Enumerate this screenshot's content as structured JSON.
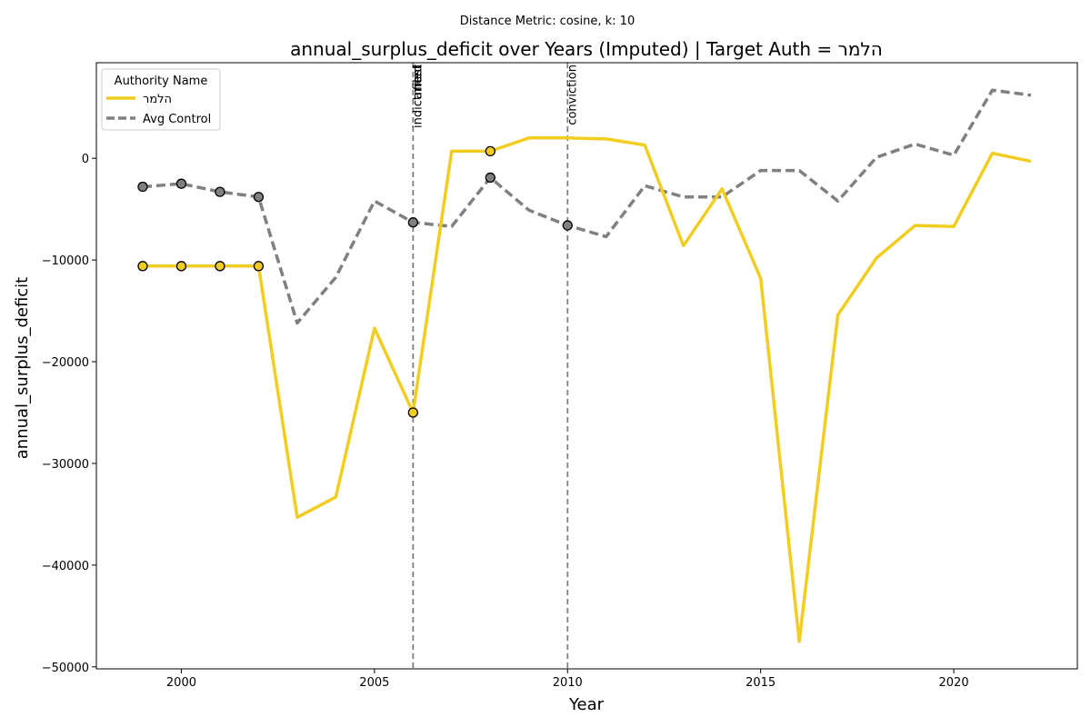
{
  "chart_data": {
    "type": "line",
    "suptitle": "Distance Metric: cosine, k: 10",
    "title": "annual_surplus_deficit over Years (Imputed) | Target Auth = הלמר",
    "xlabel": "Year",
    "ylabel": "annual_surplus_deficit",
    "xlim": [
      1997.8,
      2023.2
    ],
    "ylim": [
      -50200,
      9400
    ],
    "x_ticks": [
      2000,
      2005,
      2010,
      2015,
      2020
    ],
    "y_ticks": [
      0,
      -10000,
      -20000,
      -30000,
      -40000,
      -50000
    ],
    "x_tick_labels": [
      "2000",
      "2005",
      "2010",
      "2015",
      "2020"
    ],
    "y_tick_labels": [
      "0",
      "−10000",
      "−20000",
      "−30000",
      "−40000",
      "−50000"
    ],
    "x": [
      1999,
      2000,
      2001,
      2002,
      2003,
      2004,
      2005,
      2006,
      2007,
      2008,
      2009,
      2010,
      2011,
      2012,
      2013,
      2014,
      2015,
      2016,
      2017,
      2018,
      2019,
      2020,
      2021,
      2022
    ],
    "series": [
      {
        "name": "הלמר",
        "color": "#f2cd21",
        "style": "solid",
        "values": [
          -10600,
          -10600,
          -10600,
          -10600,
          -35300,
          -33300,
          -16700,
          -25000,
          700,
          700,
          2000,
          2000,
          1900,
          1300,
          -8600,
          -3000,
          -11800,
          -47500,
          -15400,
          -9800,
          -6600,
          -6700,
          500,
          -300
        ],
        "imputed_years": [
          1999,
          2000,
          2001,
          2002,
          2006,
          2008
        ]
      },
      {
        "name": "Avg Control",
        "color": "#808080",
        "style": "dashed",
        "values": [
          -2800,
          -2500,
          -3300,
          -3800,
          -16200,
          -11700,
          -4200,
          -6300,
          -6700,
          -1900,
          -5100,
          -6600,
          -7700,
          -2700,
          -3800,
          -3800,
          -1200,
          -1200,
          -4200,
          100,
          1400,
          300,
          6700,
          6200
        ],
        "imputed_years": [
          1999,
          2000,
          2001,
          2002,
          2006,
          2008,
          2010
        ]
      }
    ],
    "vlines": [
      {
        "x": 2006,
        "labels": [
          "indictment",
          "arrest",
          "filed"
        ]
      },
      {
        "x": 2010,
        "labels": [
          "conviction"
        ]
      }
    ],
    "legend": {
      "title": "Authority Name",
      "placement": "upper-left"
    },
    "grid": false
  }
}
